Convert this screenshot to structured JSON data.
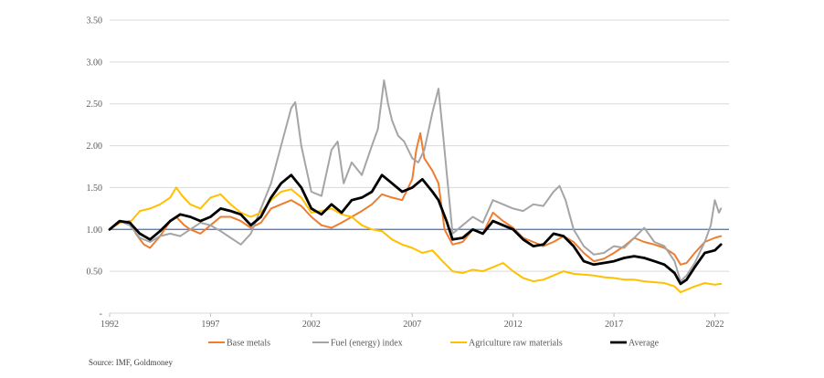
{
  "source": "Source: IMF, Goldmoney",
  "chart_data": {
    "type": "line",
    "title": "",
    "xlabel": "",
    "ylabel": "",
    "xlim": [
      1992,
      2022.7
    ],
    "ylim": [
      0,
      3.5
    ],
    "x_ticks": [
      "1992",
      "1997",
      "2002",
      "2007",
      "2012",
      "2017",
      "2022"
    ],
    "y_ticks": [
      "-",
      "0.50",
      "1.00",
      "1.50",
      "2.00",
      "2.50",
      "3.00",
      "3.50"
    ],
    "grid": "horizontal",
    "legend_position": "bottom",
    "baseline": {
      "value": 1.0,
      "color": "#4472c4"
    },
    "series": [
      {
        "name": "Base metals",
        "color": "#ed7d31",
        "width": 2,
        "points": [
          [
            1992.0,
            1.0
          ],
          [
            1992.5,
            1.08
          ],
          [
            1993.0,
            1.1
          ],
          [
            1993.3,
            0.95
          ],
          [
            1993.7,
            0.82
          ],
          [
            1994.0,
            0.78
          ],
          [
            1994.5,
            0.92
          ],
          [
            1995.0,
            1.1
          ],
          [
            1995.3,
            1.15
          ],
          [
            1995.7,
            1.05
          ],
          [
            1996.0,
            1.0
          ],
          [
            1996.5,
            0.95
          ],
          [
            1997.0,
            1.05
          ],
          [
            1997.5,
            1.15
          ],
          [
            1998.0,
            1.15
          ],
          [
            1998.5,
            1.1
          ],
          [
            1999.0,
            1.02
          ],
          [
            1999.5,
            1.08
          ],
          [
            2000.0,
            1.25
          ],
          [
            2000.5,
            1.3
          ],
          [
            2001.0,
            1.35
          ],
          [
            2001.5,
            1.28
          ],
          [
            2002.0,
            1.15
          ],
          [
            2002.5,
            1.05
          ],
          [
            2003.0,
            1.02
          ],
          [
            2003.5,
            1.08
          ],
          [
            2004.0,
            1.15
          ],
          [
            2004.5,
            1.22
          ],
          [
            2005.0,
            1.3
          ],
          [
            2005.5,
            1.42
          ],
          [
            2006.0,
            1.38
          ],
          [
            2006.5,
            1.35
          ],
          [
            2007.0,
            1.6
          ],
          [
            2007.2,
            1.95
          ],
          [
            2007.4,
            2.15
          ],
          [
            2007.6,
            1.85
          ],
          [
            2008.0,
            1.7
          ],
          [
            2008.3,
            1.55
          ],
          [
            2008.6,
            1.0
          ],
          [
            2009.0,
            0.82
          ],
          [
            2009.5,
            0.85
          ],
          [
            2010.0,
            1.0
          ],
          [
            2010.5,
            0.95
          ],
          [
            2011.0,
            1.2
          ],
          [
            2011.5,
            1.1
          ],
          [
            2012.0,
            1.02
          ],
          [
            2012.5,
            0.9
          ],
          [
            2013.0,
            0.85
          ],
          [
            2013.5,
            0.8
          ],
          [
            2014.0,
            0.85
          ],
          [
            2014.5,
            0.92
          ],
          [
            2015.0,
            0.85
          ],
          [
            2015.5,
            0.72
          ],
          [
            2016.0,
            0.62
          ],
          [
            2016.5,
            0.65
          ],
          [
            2017.0,
            0.72
          ],
          [
            2017.5,
            0.8
          ],
          [
            2018.0,
            0.9
          ],
          [
            2018.5,
            0.85
          ],
          [
            2019.0,
            0.82
          ],
          [
            2019.5,
            0.78
          ],
          [
            2020.0,
            0.7
          ],
          [
            2020.3,
            0.58
          ],
          [
            2020.6,
            0.6
          ],
          [
            2021.0,
            0.72
          ],
          [
            2021.5,
            0.85
          ],
          [
            2022.0,
            0.9
          ],
          [
            2022.3,
            0.92
          ]
        ]
      },
      {
        "name": "Fuel (energy) index",
        "color": "#a5a5a5",
        "width": 2,
        "points": [
          [
            1992.0,
            1.0
          ],
          [
            1992.5,
            1.1
          ],
          [
            1993.0,
            1.05
          ],
          [
            1993.5,
            0.9
          ],
          [
            1994.0,
            0.85
          ],
          [
            1994.5,
            0.92
          ],
          [
            1995.0,
            0.95
          ],
          [
            1995.5,
            0.92
          ],
          [
            1996.0,
            1.0
          ],
          [
            1996.5,
            1.08
          ],
          [
            1997.0,
            1.05
          ],
          [
            1997.5,
            0.98
          ],
          [
            1998.0,
            0.9
          ],
          [
            1998.5,
            0.82
          ],
          [
            1999.0,
            0.95
          ],
          [
            1999.5,
            1.25
          ],
          [
            2000.0,
            1.55
          ],
          [
            2000.5,
            2.0
          ],
          [
            2001.0,
            2.45
          ],
          [
            2001.2,
            2.52
          ],
          [
            2001.5,
            2.0
          ],
          [
            2002.0,
            1.45
          ],
          [
            2002.5,
            1.4
          ],
          [
            2003.0,
            1.95
          ],
          [
            2003.3,
            2.05
          ],
          [
            2003.6,
            1.55
          ],
          [
            2004.0,
            1.8
          ],
          [
            2004.5,
            1.65
          ],
          [
            2005.0,
            2.0
          ],
          [
            2005.3,
            2.2
          ],
          [
            2005.6,
            2.78
          ],
          [
            2005.8,
            2.5
          ],
          [
            2006.0,
            2.3
          ],
          [
            2006.3,
            2.12
          ],
          [
            2006.6,
            2.05
          ],
          [
            2007.0,
            1.85
          ],
          [
            2007.3,
            1.8
          ],
          [
            2007.6,
            1.95
          ],
          [
            2008.0,
            2.4
          ],
          [
            2008.3,
            2.68
          ],
          [
            2008.5,
            2.2
          ],
          [
            2008.7,
            1.7
          ],
          [
            2009.0,
            0.95
          ],
          [
            2009.5,
            1.05
          ],
          [
            2010.0,
            1.15
          ],
          [
            2010.5,
            1.08
          ],
          [
            2011.0,
            1.35
          ],
          [
            2011.5,
            1.3
          ],
          [
            2012.0,
            1.25
          ],
          [
            2012.5,
            1.22
          ],
          [
            2013.0,
            1.3
          ],
          [
            2013.5,
            1.28
          ],
          [
            2014.0,
            1.45
          ],
          [
            2014.3,
            1.52
          ],
          [
            2014.6,
            1.35
          ],
          [
            2015.0,
            1.0
          ],
          [
            2015.5,
            0.8
          ],
          [
            2016.0,
            0.7
          ],
          [
            2016.5,
            0.72
          ],
          [
            2017.0,
            0.8
          ],
          [
            2017.5,
            0.78
          ],
          [
            2018.0,
            0.9
          ],
          [
            2018.5,
            1.02
          ],
          [
            2019.0,
            0.85
          ],
          [
            2019.5,
            0.8
          ],
          [
            2020.0,
            0.62
          ],
          [
            2020.3,
            0.38
          ],
          [
            2020.6,
            0.45
          ],
          [
            2021.0,
            0.6
          ],
          [
            2021.5,
            0.85
          ],
          [
            2021.8,
            1.05
          ],
          [
            2022.0,
            1.35
          ],
          [
            2022.2,
            1.2
          ],
          [
            2022.3,
            1.25
          ]
        ]
      },
      {
        "name": "Agriculture raw materials",
        "color": "#ffc000",
        "width": 2,
        "points": [
          [
            1992.0,
            1.0
          ],
          [
            1992.5,
            1.1
          ],
          [
            1993.0,
            1.08
          ],
          [
            1993.5,
            1.22
          ],
          [
            1994.0,
            1.25
          ],
          [
            1994.5,
            1.3
          ],
          [
            1995.0,
            1.38
          ],
          [
            1995.3,
            1.5
          ],
          [
            1995.6,
            1.4
          ],
          [
            1996.0,
            1.3
          ],
          [
            1996.5,
            1.25
          ],
          [
            1997.0,
            1.38
          ],
          [
            1997.5,
            1.42
          ],
          [
            1998.0,
            1.3
          ],
          [
            1998.5,
            1.2
          ],
          [
            1999.0,
            1.15
          ],
          [
            1999.5,
            1.2
          ],
          [
            2000.0,
            1.35
          ],
          [
            2000.5,
            1.45
          ],
          [
            2001.0,
            1.48
          ],
          [
            2001.5,
            1.38
          ],
          [
            2002.0,
            1.2
          ],
          [
            2002.5,
            1.22
          ],
          [
            2003.0,
            1.25
          ],
          [
            2003.5,
            1.18
          ],
          [
            2004.0,
            1.15
          ],
          [
            2004.5,
            1.05
          ],
          [
            2005.0,
            1.0
          ],
          [
            2005.5,
            0.98
          ],
          [
            2006.0,
            0.88
          ],
          [
            2006.5,
            0.82
          ],
          [
            2007.0,
            0.78
          ],
          [
            2007.5,
            0.72
          ],
          [
            2008.0,
            0.75
          ],
          [
            2008.5,
            0.62
          ],
          [
            2009.0,
            0.5
          ],
          [
            2009.5,
            0.48
          ],
          [
            2010.0,
            0.52
          ],
          [
            2010.5,
            0.5
          ],
          [
            2011.0,
            0.55
          ],
          [
            2011.5,
            0.6
          ],
          [
            2012.0,
            0.5
          ],
          [
            2012.5,
            0.42
          ],
          [
            2013.0,
            0.38
          ],
          [
            2013.5,
            0.4
          ],
          [
            2014.0,
            0.45
          ],
          [
            2014.5,
            0.5
          ],
          [
            2015.0,
            0.47
          ],
          [
            2015.5,
            0.46
          ],
          [
            2016.0,
            0.45
          ],
          [
            2016.5,
            0.43
          ],
          [
            2017.0,
            0.42
          ],
          [
            2017.5,
            0.4
          ],
          [
            2018.0,
            0.4
          ],
          [
            2018.5,
            0.38
          ],
          [
            2019.0,
            0.37
          ],
          [
            2019.5,
            0.36
          ],
          [
            2020.0,
            0.32
          ],
          [
            2020.3,
            0.25
          ],
          [
            2020.6,
            0.28
          ],
          [
            2021.0,
            0.32
          ],
          [
            2021.5,
            0.36
          ],
          [
            2022.0,
            0.34
          ],
          [
            2022.3,
            0.35
          ]
        ]
      },
      {
        "name": "Average",
        "color": "#000000",
        "width": 2.8,
        "points": [
          [
            1992.0,
            1.0
          ],
          [
            1992.5,
            1.1
          ],
          [
            1993.0,
            1.08
          ],
          [
            1993.5,
            0.95
          ],
          [
            1994.0,
            0.88
          ],
          [
            1994.5,
            0.98
          ],
          [
            1995.0,
            1.1
          ],
          [
            1995.5,
            1.18
          ],
          [
            1996.0,
            1.15
          ],
          [
            1996.5,
            1.1
          ],
          [
            1997.0,
            1.15
          ],
          [
            1997.5,
            1.25
          ],
          [
            1998.0,
            1.22
          ],
          [
            1998.5,
            1.18
          ],
          [
            1999.0,
            1.05
          ],
          [
            1999.5,
            1.15
          ],
          [
            2000.0,
            1.38
          ],
          [
            2000.5,
            1.55
          ],
          [
            2001.0,
            1.65
          ],
          [
            2001.5,
            1.5
          ],
          [
            2002.0,
            1.25
          ],
          [
            2002.5,
            1.18
          ],
          [
            2003.0,
            1.3
          ],
          [
            2003.5,
            1.2
          ],
          [
            2004.0,
            1.35
          ],
          [
            2004.5,
            1.38
          ],
          [
            2005.0,
            1.45
          ],
          [
            2005.5,
            1.65
          ],
          [
            2006.0,
            1.55
          ],
          [
            2006.5,
            1.45
          ],
          [
            2007.0,
            1.5
          ],
          [
            2007.5,
            1.6
          ],
          [
            2008.0,
            1.45
          ],
          [
            2008.3,
            1.35
          ],
          [
            2008.7,
            1.1
          ],
          [
            2009.0,
            0.88
          ],
          [
            2009.5,
            0.9
          ],
          [
            2010.0,
            1.0
          ],
          [
            2010.5,
            0.95
          ],
          [
            2011.0,
            1.1
          ],
          [
            2011.5,
            1.05
          ],
          [
            2012.0,
            1.0
          ],
          [
            2012.5,
            0.88
          ],
          [
            2013.0,
            0.8
          ],
          [
            2013.5,
            0.82
          ],
          [
            2014.0,
            0.95
          ],
          [
            2014.5,
            0.92
          ],
          [
            2015.0,
            0.8
          ],
          [
            2015.5,
            0.62
          ],
          [
            2016.0,
            0.58
          ],
          [
            2016.5,
            0.6
          ],
          [
            2017.0,
            0.62
          ],
          [
            2017.5,
            0.66
          ],
          [
            2018.0,
            0.68
          ],
          [
            2018.5,
            0.66
          ],
          [
            2019.0,
            0.62
          ],
          [
            2019.5,
            0.58
          ],
          [
            2020.0,
            0.48
          ],
          [
            2020.3,
            0.35
          ],
          [
            2020.6,
            0.4
          ],
          [
            2021.0,
            0.55
          ],
          [
            2021.5,
            0.72
          ],
          [
            2022.0,
            0.75
          ],
          [
            2022.3,
            0.82
          ]
        ]
      }
    ]
  }
}
